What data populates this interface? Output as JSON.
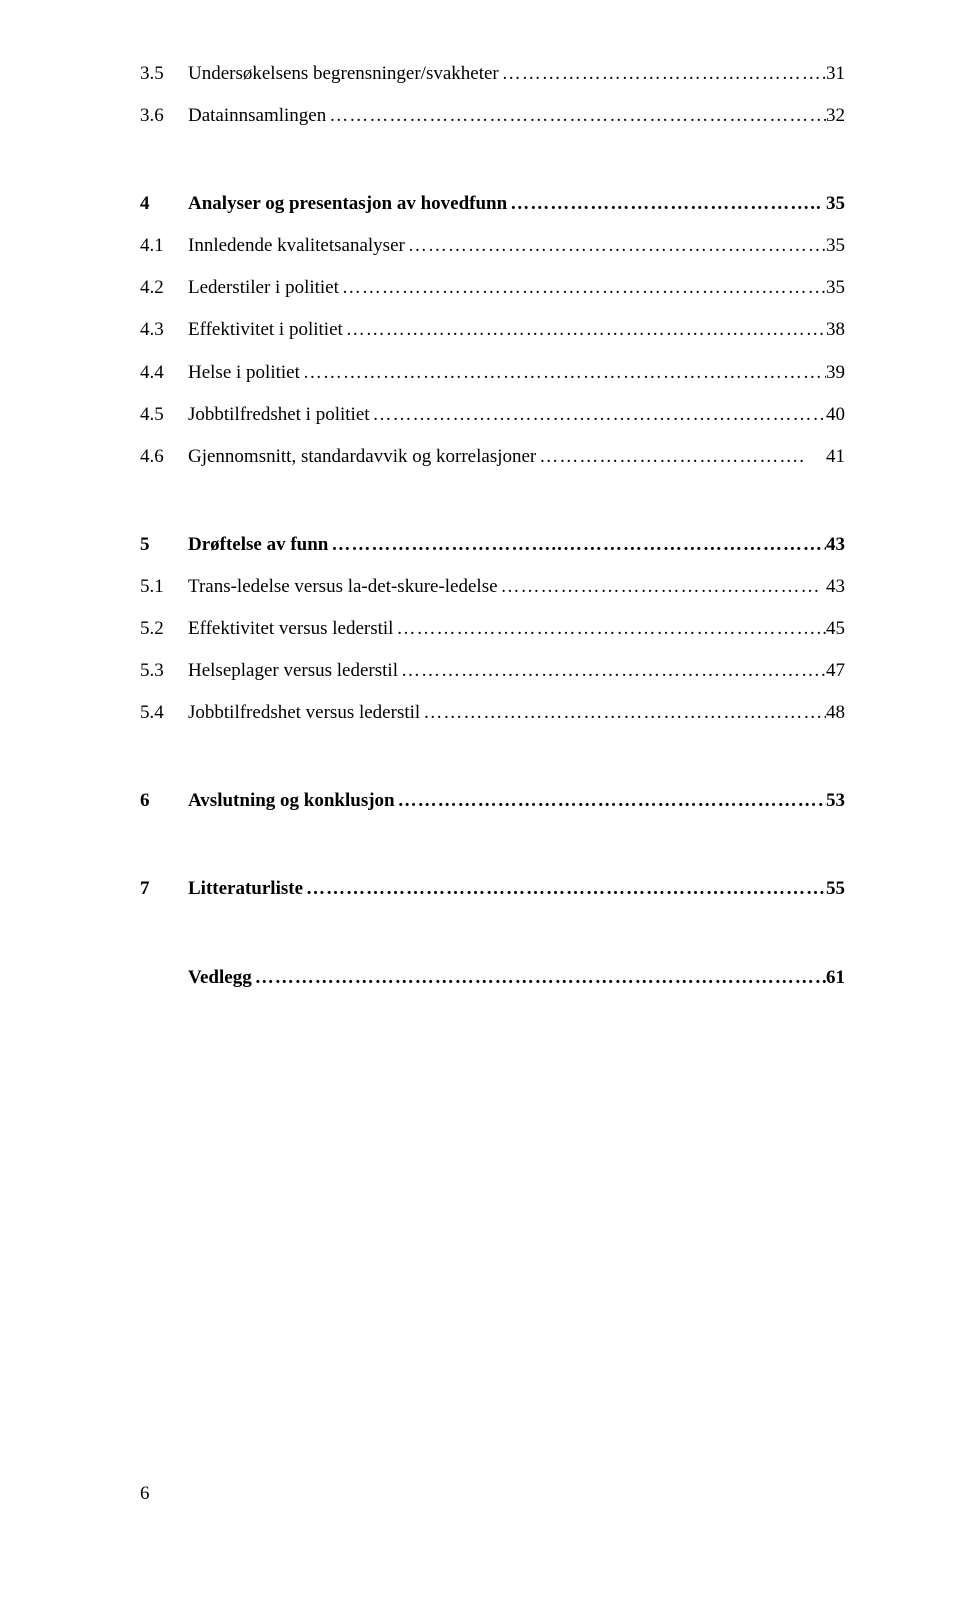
{
  "toc": {
    "section3": [
      {
        "num": "3.5",
        "label": "Undersøkelsens begrensninger/svakheter",
        "dots": "…………………………………………...",
        "page": "31"
      },
      {
        "num": "3.6",
        "label": "Datainnsamlingen",
        "dots": "……………………………………………………………………",
        "page": "32"
      }
    ],
    "section4head": {
      "num": "4",
      "label": "Analyser og presentasjon av hovedfunn",
      "dots": "………………………………………..",
      "page": "35"
    },
    "section4": [
      {
        "num": "4.1",
        "label": "Innledende kvalitetsanalyser",
        "dots": "………………………………………………………",
        "page": "35"
      },
      {
        "num": "4.2",
        "label": "Lederstiler i politiet",
        "dots": "……………………………………………………….………..",
        "page": "35"
      },
      {
        "num": "4.3",
        "label": "Effektivitet i politiet",
        "dots": "………………………………………………………………...",
        "page": "38"
      },
      {
        "num": "4.4",
        "label": "Helse i politiet",
        "dots": "………………………………………………………………………..",
        "page": "39"
      },
      {
        "num": "4.5",
        "label": "Jobbtilfredshet i politiet",
        "dots": "……………………………………………………………...",
        "page": "40"
      },
      {
        "num": "4.6",
        "label": "Gjennomsnitt, standardavvik og korrelasjoner",
        "dots": "………………………………….",
        "page": "41"
      }
    ],
    "section5head": {
      "num": "5",
      "label": "Drøftelse av funn",
      "dots": "……………………………..…………………………………………..",
      "page": "43"
    },
    "section5": [
      {
        "num": "5.1",
        "label": "Trans-ledelse versus la-det-skure-ledelse",
        "dots": "…………………………………………",
        "page": "43"
      },
      {
        "num": "5.2",
        "label": "Effektivitet versus lederstil",
        "dots": "………………………………………………………..",
        "page": "45"
      },
      {
        "num": "5.3",
        "label": "Helseplager versus lederstil",
        "dots": "………………………………………………………....",
        "page": "47"
      },
      {
        "num": "5.4",
        "label": "Jobbtilfredshet versus lederstil",
        "dots": "…………………………………………………….",
        "page": "48"
      }
    ],
    "section6head": {
      "num": "6",
      "label": "Avslutning og konklusjon",
      "dots": "……………………………………………………………….",
      "page": "53"
    },
    "section7head": {
      "num": "7",
      "label": "Litteraturliste",
      "dots": "……………………………………………………………………………..",
      "page": "55"
    },
    "appendix": {
      "num": "",
      "label": "Vedlegg",
      "dots": "…………………………………………………………………………………….",
      "page": "61"
    }
  },
  "footer": "6"
}
